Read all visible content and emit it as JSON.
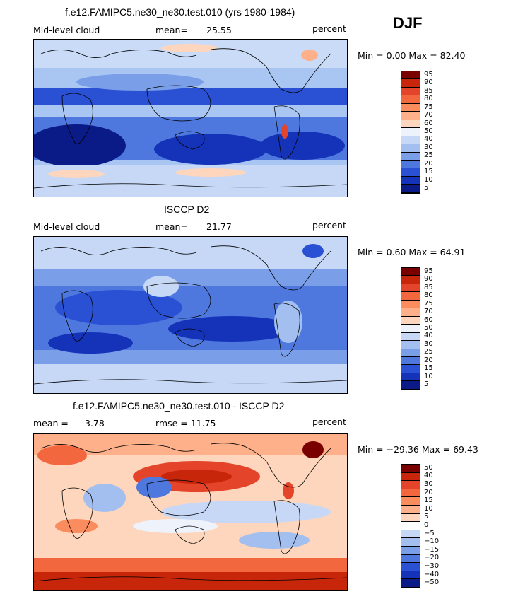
{
  "season": "DJF",
  "panels": [
    {
      "title": "f.e12.FAMIPC5.ne30_ne30.test.010 (yrs 1980-1984)",
      "left_label": "Mid-level cloud",
      "stat_label": "mean=",
      "stat_value": "25.55",
      "right_label": "percent",
      "range_text": "Min =    0.00 Max =   82.40",
      "bar_labels": [
        "95",
        "90",
        "85",
        "80",
        "75",
        "70",
        "60",
        "50",
        "40",
        "30",
        "25",
        "20",
        "15",
        "10",
        "5"
      ]
    },
    {
      "title": "ISCCP D2",
      "left_label": "Mid-level cloud",
      "stat_label": "mean=",
      "stat_value": "21.77",
      "right_label": "percent",
      "range_text": "Min =    0.60 Max =   64.91",
      "bar_labels": [
        "95",
        "90",
        "85",
        "80",
        "75",
        "70",
        "60",
        "50",
        "40",
        "30",
        "25",
        "20",
        "15",
        "10",
        "5"
      ]
    },
    {
      "title": "f.e12.FAMIPC5.ne30_ne30.test.010 - ISCCP D2",
      "left_label": "mean =",
      "stat_label": "3.78",
      "stat_value": "rmse =  11.75",
      "right_label": "percent",
      "range_text": "Min = −29.36 Max =   69.43",
      "bar_labels": [
        "50",
        "40",
        "30",
        "20",
        "15",
        "10",
        "5",
        "0",
        "−5",
        "−10",
        "−15",
        "−20",
        "−30",
        "−40",
        "−50"
      ]
    }
  ],
  "chart_data": [
    {
      "type": "heatmap",
      "title": "f.e12.FAMIPC5.ne30_ne30.test.010 (yrs 1980-1984)",
      "variable": "Mid-level cloud",
      "units": "percent",
      "mean": 25.55,
      "min": 0.0,
      "max": 82.4,
      "contour_levels": [
        5,
        10,
        15,
        20,
        25,
        30,
        40,
        50,
        60,
        70,
        75,
        80,
        85,
        90,
        95
      ]
    },
    {
      "type": "heatmap",
      "title": "ISCCP D2",
      "variable": "Mid-level cloud",
      "units": "percent",
      "mean": 21.77,
      "min": 0.6,
      "max": 64.91,
      "contour_levels": [
        5,
        10,
        15,
        20,
        25,
        30,
        40,
        50,
        60,
        70,
        75,
        80,
        85,
        90,
        95
      ]
    },
    {
      "type": "heatmap",
      "title": "f.e12.FAMIPC5.ne30_ne30.test.010 - ISCCP D2",
      "variable": "difference",
      "units": "percent",
      "mean": 3.78,
      "rmse": 11.75,
      "min": -29.36,
      "max": 69.43,
      "contour_levels": [
        -50,
        -40,
        -30,
        -20,
        -15,
        -10,
        -5,
        0,
        5,
        10,
        15,
        20,
        30,
        40,
        50
      ]
    }
  ],
  "colors": {
    "abs_scale": [
      "#7a0000",
      "#c8260a",
      "#e4452a",
      "#f3673f",
      "#fa8c5e",
      "#fdb089",
      "#fdd6bd",
      "#eef2fb",
      "#c6d8f6",
      "#a2bff0",
      "#7a9fe8",
      "#4f78de",
      "#2a50d4",
      "#1433b8",
      "#0a1a86"
    ],
    "diff_scale": [
      "#7a0000",
      "#c8260a",
      "#e4452a",
      "#f3673f",
      "#fa8c5e",
      "#fdb089",
      "#fdd6bd",
      "#ffffff",
      "#c6d8f6",
      "#a2bff0",
      "#7a9fe8",
      "#4f78de",
      "#2a50d4",
      "#1433b8",
      "#0a1a86"
    ]
  }
}
